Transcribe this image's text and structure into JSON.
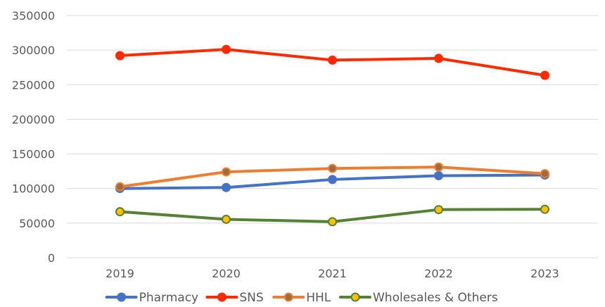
{
  "chart_data": {
    "type": "line",
    "title": "",
    "xlabel": "",
    "ylabel": "",
    "categories": [
      "2019",
      "2020",
      "2021",
      "2022",
      "2023"
    ],
    "ylim": [
      0,
      350000
    ],
    "yticks": [
      0,
      50000,
      100000,
      150000,
      200000,
      250000,
      300000,
      350000
    ],
    "ytick_labels": [
      "0",
      "50000",
      "100000",
      "150000",
      "200000",
      "250000",
      "300000",
      "350000"
    ],
    "grid": true,
    "legend_position": "bottom",
    "series": [
      {
        "name": "Pharmacy",
        "color": "#4472c4",
        "marker_color": "#4472c4",
        "values": [
          100000,
          101500,
          113000,
          118500,
          119500
        ]
      },
      {
        "name": "SNS",
        "color": "#ff2a00",
        "marker_color": "#ff2a00",
        "values": [
          292000,
          301000,
          285500,
          288000,
          263500
        ]
      },
      {
        "name": "HHL",
        "color": "#ed7d31",
        "marker_color": "#9e6b3d",
        "values": [
          102500,
          124000,
          129000,
          131000,
          121500
        ]
      },
      {
        "name": "Wholesales & Others",
        "color": "#548235",
        "marker_color": "#ffc000",
        "values": [
          66500,
          55500,
          52000,
          69500,
          70000
        ]
      }
    ]
  }
}
